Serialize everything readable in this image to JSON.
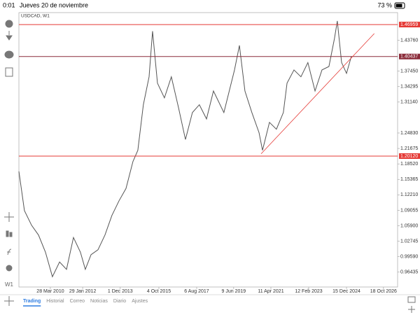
{
  "status_bar": {
    "time": "0:01",
    "date": "Jueves 20 de noviembre",
    "battery": "73 %"
  },
  "toolbar": {
    "timeframe": "W1"
  },
  "tabs": [
    "Trading",
    "Historial",
    "Correo",
    "Noticias",
    "Diario",
    "Ajustes"
  ],
  "chart_data": {
    "type": "line",
    "title": "USDCAD, W1",
    "x": [
      2008.7,
      2008.97,
      2009.32,
      2009.66,
      2010.0,
      2010.34,
      2010.69,
      2011.03,
      2011.37,
      2011.71,
      2011.95,
      2012.23,
      2012.57,
      2012.91,
      2013.25,
      2013.6,
      2013.94,
      2014.28,
      2014.52,
      2014.79,
      2015.07,
      2015.24,
      2015.48,
      2015.82,
      2016.16,
      2016.51,
      2016.85,
      2017.19,
      2017.53,
      2017.88,
      2018.22,
      2018.73,
      2019.25,
      2019.49,
      2019.76,
      2020.1,
      2020.45,
      2020.62,
      2020.96,
      2021.3,
      2021.64,
      2021.82,
      2022.16,
      2022.5,
      2022.84,
      2023.19,
      2023.53,
      2023.87,
      2024.14,
      2024.28,
      2024.49,
      2024.73,
      2024.97
    ],
    "values": [
      1.17,
      1.09,
      1.06,
      1.04,
      1.005,
      0.955,
      0.985,
      0.97,
      1.035,
      1.005,
      0.97,
      1.0,
      1.01,
      1.04,
      1.08,
      1.11,
      1.135,
      1.19,
      1.213,
      1.306,
      1.363,
      1.456,
      1.35,
      1.32,
      1.363,
      1.3,
      1.235,
      1.29,
      1.306,
      1.277,
      1.334,
      1.29,
      1.377,
      1.427,
      1.334,
      1.29,
      1.249,
      1.213,
      1.27,
      1.256,
      1.29,
      1.35,
      1.377,
      1.363,
      1.392,
      1.334,
      1.377,
      1.384,
      1.441,
      1.477,
      1.392,
      1.37,
      1.405
    ],
    "color": "#555555",
    "xlim": [
      2008.7,
      2027.23
    ],
    "xticks": [
      {
        "value": 2010.24,
        "label": "28 Mar 2010"
      },
      {
        "value": 2011.82,
        "label": "29 Jan 2012"
      },
      {
        "value": 2013.66,
        "label": "1 Dec 2013"
      },
      {
        "value": 2015.55,
        "label": "4 Oct 2015"
      },
      {
        "value": 2017.4,
        "label": "6 Aug 2017"
      },
      {
        "value": 2019.21,
        "label": "9 Jun 2019"
      },
      {
        "value": 2021.03,
        "label": "11 Apr 2021"
      },
      {
        "value": 2022.88,
        "label": "12 Feb 2023"
      },
      {
        "value": 2024.73,
        "label": "15 Dec 2024"
      },
      {
        "value": 2026.54,
        "label": "18 Oct 2026"
      }
    ],
    "ylim": [
      0.934,
      1.494
    ],
    "yticks": [
      {
        "value": 1.4376,
        "label": "1.43760"
      },
      {
        "value": 1.3745,
        "label": "1.37450"
      },
      {
        "value": 1.34295,
        "label": "1.34295"
      },
      {
        "value": 1.3114,
        "label": "1.31140"
      },
      {
        "value": 1.2483,
        "label": "1.24830"
      },
      {
        "value": 1.21675,
        "label": "1.21675"
      },
      {
        "value": 1.1852,
        "label": "1.18520"
      },
      {
        "value": 1.15365,
        "label": "1.15365"
      },
      {
        "value": 1.1221,
        "label": "1.12210"
      },
      {
        "value": 1.09055,
        "label": "1.09055"
      },
      {
        "value": 1.059,
        "label": "1.05900"
      },
      {
        "value": 1.02745,
        "label": "1.02745"
      },
      {
        "value": 0.9959,
        "label": "0.99590"
      },
      {
        "value": 0.96435,
        "label": "0.96435"
      }
    ],
    "levels": [
      {
        "value": 1.46959,
        "label": "1.46959",
        "color": "#e53935"
      },
      {
        "value": 1.40437,
        "label": "1.40437",
        "color": "#8b2c3a"
      },
      {
        "value": 1.2012,
        "label": "1.20120",
        "color": "#e53935"
      }
    ],
    "trendline": {
      "x": [
        2020.55,
        2026.09
      ],
      "values": [
        1.2058,
        1.4513
      ],
      "color": "#e53935"
    }
  }
}
